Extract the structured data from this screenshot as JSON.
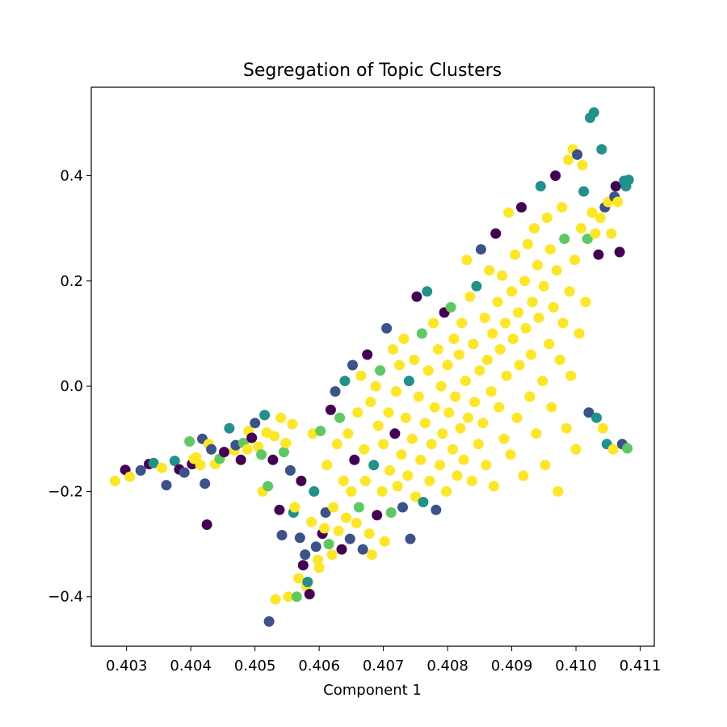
{
  "chart_data": {
    "type": "scatter",
    "title": "Segregation of Topic Clusters",
    "xlabel": "Component 1",
    "ylabel": "",
    "xlim": [
      0.40245,
      0.41122
    ],
    "ylim": [
      -0.494,
      0.568
    ],
    "grid": false,
    "legend": "none",
    "x_ticks": [
      {
        "value": 0.403,
        "label": "0.403"
      },
      {
        "value": 0.404,
        "label": "0.404"
      },
      {
        "value": 0.405,
        "label": "0.405"
      },
      {
        "value": 0.406,
        "label": "0.406"
      },
      {
        "value": 0.407,
        "label": "0.407"
      },
      {
        "value": 0.408,
        "label": "0.408"
      },
      {
        "value": 0.409,
        "label": "0.409"
      },
      {
        "value": 0.41,
        "label": "0.410"
      },
      {
        "value": 0.411,
        "label": "0.411"
      }
    ],
    "y_ticks": [
      {
        "value": -0.4,
        "label": "−0.4"
      },
      {
        "value": -0.2,
        "label": "−0.2"
      },
      {
        "value": 0.0,
        "label": "0.0"
      },
      {
        "value": 0.2,
        "label": "0.2"
      },
      {
        "value": 0.4,
        "label": "0.4"
      }
    ],
    "cluster_colors": [
      "#440154",
      "#3b528b",
      "#21918c",
      "#5ec962",
      "#fde725"
    ],
    "points": [
      [
        0.40282,
        -0.18,
        4
      ],
      [
        0.40298,
        -0.159,
        0
      ],
      [
        0.40305,
        -0.172,
        4
      ],
      [
        0.40322,
        -0.16,
        1
      ],
      [
        0.40335,
        -0.148,
        0
      ],
      [
        0.40342,
        -0.146,
        2
      ],
      [
        0.40355,
        -0.155,
        4
      ],
      [
        0.40362,
        -0.188,
        1
      ],
      [
        0.40375,
        -0.142,
        2
      ],
      [
        0.40382,
        -0.158,
        0
      ],
      [
        0.4039,
        -0.164,
        1
      ],
      [
        0.40398,
        -0.105,
        3
      ],
      [
        0.40402,
        -0.148,
        0
      ],
      [
        0.40405,
        -0.138,
        4
      ],
      [
        0.40408,
        -0.135,
        4
      ],
      [
        0.40415,
        -0.15,
        4
      ],
      [
        0.40418,
        -0.1,
        1
      ],
      [
        0.40422,
        -0.185,
        1
      ],
      [
        0.40425,
        -0.263,
        0
      ],
      [
        0.40428,
        -0.11,
        4
      ],
      [
        0.40432,
        -0.12,
        1
      ],
      [
        0.40438,
        -0.148,
        4
      ],
      [
        0.40445,
        -0.138,
        3
      ],
      [
        0.40452,
        -0.125,
        0
      ],
      [
        0.4046,
        -0.08,
        2
      ],
      [
        0.40468,
        -0.122,
        4
      ],
      [
        0.4047,
        -0.112,
        1
      ],
      [
        0.40478,
        -0.14,
        0
      ],
      [
        0.40482,
        -0.108,
        3
      ],
      [
        0.40488,
        -0.12,
        4
      ],
      [
        0.4049,
        -0.085,
        4
      ],
      [
        0.40495,
        -0.098,
        0
      ],
      [
        0.405,
        -0.07,
        1
      ],
      [
        0.40505,
        -0.115,
        4
      ],
      [
        0.4051,
        -0.13,
        3
      ],
      [
        0.40512,
        -0.2,
        4
      ],
      [
        0.40515,
        -0.055,
        2
      ],
      [
        0.40518,
        -0.088,
        4
      ],
      [
        0.4052,
        -0.19,
        3
      ],
      [
        0.40522,
        -0.447,
        1
      ],
      [
        0.40528,
        -0.14,
        0
      ],
      [
        0.4053,
        -0.095,
        4
      ],
      [
        0.40532,
        -0.405,
        4
      ],
      [
        0.40538,
        -0.235,
        0
      ],
      [
        0.4054,
        -0.06,
        4
      ],
      [
        0.40542,
        -0.283,
        1
      ],
      [
        0.40545,
        -0.125,
        3
      ],
      [
        0.40548,
        -0.108,
        4
      ],
      [
        0.40552,
        -0.4,
        4
      ],
      [
        0.40555,
        -0.16,
        1
      ],
      [
        0.40558,
        -0.072,
        4
      ],
      [
        0.4056,
        -0.24,
        2
      ],
      [
        0.40562,
        -0.23,
        4
      ],
      [
        0.40565,
        -0.4,
        3
      ],
      [
        0.40568,
        -0.365,
        4
      ],
      [
        0.4057,
        -0.288,
        1
      ],
      [
        0.40572,
        -0.18,
        0
      ],
      [
        0.40575,
        -0.34,
        0
      ],
      [
        0.40578,
        -0.32,
        1
      ],
      [
        0.4058,
        -0.38,
        4
      ],
      [
        0.40582,
        -0.372,
        2
      ],
      [
        0.40585,
        -0.395,
        0
      ],
      [
        0.40588,
        -0.258,
        4
      ],
      [
        0.4059,
        -0.09,
        4
      ],
      [
        0.40592,
        -0.2,
        2
      ],
      [
        0.40595,
        -0.305,
        1
      ],
      [
        0.40598,
        -0.33,
        4
      ],
      [
        0.406,
        -0.345,
        4
      ],
      [
        0.40602,
        -0.085,
        3
      ],
      [
        0.40605,
        -0.28,
        0
      ],
      [
        0.40608,
        -0.27,
        4
      ],
      [
        0.4061,
        -0.24,
        1
      ],
      [
        0.40612,
        -0.15,
        4
      ],
      [
        0.40615,
        -0.3,
        3
      ],
      [
        0.40618,
        -0.045,
        0
      ],
      [
        0.4062,
        -0.32,
        4
      ],
      [
        0.40622,
        -0.23,
        4
      ],
      [
        0.40625,
        -0.01,
        1
      ],
      [
        0.40628,
        -0.11,
        4
      ],
      [
        0.4063,
        -0.275,
        4
      ],
      [
        0.40632,
        -0.06,
        3
      ],
      [
        0.40635,
        -0.31,
        0
      ],
      [
        0.40638,
        -0.18,
        4
      ],
      [
        0.4064,
        0.01,
        2
      ],
      [
        0.40642,
        -0.25,
        4
      ],
      [
        0.40645,
        -0.09,
        4
      ],
      [
        0.40648,
        -0.29,
        1
      ],
      [
        0.4065,
        -0.2,
        4
      ],
      [
        0.40652,
        0.04,
        1
      ],
      [
        0.40655,
        -0.14,
        0
      ],
      [
        0.40658,
        -0.26,
        4
      ],
      [
        0.4066,
        -0.05,
        4
      ],
      [
        0.40662,
        -0.23,
        3
      ],
      [
        0.40665,
        0.02,
        4
      ],
      [
        0.40668,
        -0.31,
        1
      ],
      [
        0.4067,
        -0.12,
        4
      ],
      [
        0.40672,
        -0.18,
        4
      ],
      [
        0.40675,
        0.06,
        0
      ],
      [
        0.40678,
        -0.28,
        4
      ],
      [
        0.4068,
        -0.03,
        4
      ],
      [
        0.40682,
        -0.32,
        4
      ],
      [
        0.40685,
        -0.15,
        2
      ],
      [
        0.40688,
        0.0,
        4
      ],
      [
        0.4069,
        -0.245,
        0
      ],
      [
        0.40692,
        -0.075,
        4
      ],
      [
        0.40695,
        0.03,
        3
      ],
      [
        0.40698,
        -0.2,
        4
      ],
      [
        0.407,
        -0.11,
        4
      ],
      [
        0.40702,
        -0.295,
        4
      ],
      [
        0.40705,
        0.11,
        1
      ],
      [
        0.40708,
        -0.05,
        4
      ],
      [
        0.4071,
        -0.16,
        4
      ],
      [
        0.40712,
        -0.24,
        3
      ],
      [
        0.40715,
        0.07,
        4
      ],
      [
        0.40718,
        -0.09,
        0
      ],
      [
        0.4072,
        -0.01,
        4
      ],
      [
        0.40722,
        -0.19,
        4
      ],
      [
        0.40725,
        0.04,
        4
      ],
      [
        0.40728,
        -0.13,
        4
      ],
      [
        0.4073,
        -0.23,
        1
      ],
      [
        0.40732,
        0.09,
        4
      ],
      [
        0.40735,
        -0.06,
        4
      ],
      [
        0.40738,
        -0.17,
        4
      ],
      [
        0.4074,
        0.01,
        2
      ],
      [
        0.40742,
        -0.29,
        1
      ],
      [
        0.40745,
        -0.1,
        4
      ],
      [
        0.40748,
        0.05,
        4
      ],
      [
        0.4075,
        -0.21,
        4
      ],
      [
        0.40752,
        0.17,
        0
      ],
      [
        0.40755,
        -0.02,
        4
      ],
      [
        0.40758,
        -0.14,
        4
      ],
      [
        0.4076,
        0.1,
        3
      ],
      [
        0.40762,
        -0.22,
        2
      ],
      [
        0.40765,
        -0.07,
        4
      ],
      [
        0.40768,
        0.18,
        2
      ],
      [
        0.4077,
        0.03,
        4
      ],
      [
        0.40772,
        -0.18,
        4
      ],
      [
        0.40775,
        -0.11,
        4
      ],
      [
        0.40778,
        0.12,
        4
      ],
      [
        0.4078,
        -0.04,
        4
      ],
      [
        0.40782,
        -0.235,
        1
      ],
      [
        0.40785,
        0.07,
        4
      ],
      [
        0.40788,
        -0.15,
        4
      ],
      [
        0.4079,
        0.0,
        4
      ],
      [
        0.40792,
        -0.09,
        4
      ],
      [
        0.40795,
        0.14,
        0
      ],
      [
        0.40798,
        -0.2,
        4
      ],
      [
        0.408,
        0.04,
        4
      ],
      [
        0.40802,
        -0.05,
        4
      ],
      [
        0.40805,
        0.15,
        3
      ],
      [
        0.40808,
        -0.12,
        4
      ],
      [
        0.4081,
        0.09,
        4
      ],
      [
        0.40812,
        -0.02,
        4
      ],
      [
        0.40815,
        -0.17,
        4
      ],
      [
        0.40818,
        0.06,
        4
      ],
      [
        0.4082,
        -0.08,
        4
      ],
      [
        0.40822,
        0.12,
        4
      ],
      [
        0.40825,
        -0.14,
        4
      ],
      [
        0.40828,
        0.01,
        4
      ],
      [
        0.4083,
        0.24,
        4
      ],
      [
        0.40832,
        -0.06,
        4
      ],
      [
        0.40835,
        0.17,
        4
      ],
      [
        0.40838,
        -0.18,
        4
      ],
      [
        0.4084,
        0.08,
        4
      ],
      [
        0.40842,
        -0.03,
        4
      ],
      [
        0.40845,
        0.19,
        2
      ],
      [
        0.40848,
        -0.11,
        4
      ],
      [
        0.4085,
        0.03,
        4
      ],
      [
        0.40852,
        0.26,
        1
      ],
      [
        0.40855,
        -0.07,
        4
      ],
      [
        0.40858,
        0.13,
        4
      ],
      [
        0.4086,
        -0.15,
        4
      ],
      [
        0.40862,
        0.05,
        4
      ],
      [
        0.40865,
        0.22,
        4
      ],
      [
        0.40868,
        -0.01,
        4
      ],
      [
        0.4087,
        0.1,
        4
      ],
      [
        0.40872,
        -0.19,
        4
      ],
      [
        0.40875,
        0.29,
        0
      ],
      [
        0.40878,
        0.16,
        4
      ],
      [
        0.4088,
        -0.04,
        4
      ],
      [
        0.40882,
        0.07,
        4
      ],
      [
        0.40885,
        0.21,
        4
      ],
      [
        0.40888,
        -0.1,
        4
      ],
      [
        0.4089,
        0.12,
        4
      ],
      [
        0.40892,
        0.02,
        4
      ],
      [
        0.40895,
        0.33,
        4
      ],
      [
        0.40898,
        -0.13,
        4
      ],
      [
        0.409,
        0.18,
        4
      ],
      [
        0.40902,
        0.09,
        4
      ],
      [
        0.40905,
        0.25,
        4
      ],
      [
        0.40908,
        -0.06,
        4
      ],
      [
        0.4091,
        0.14,
        4
      ],
      [
        0.40912,
        0.04,
        4
      ],
      [
        0.40915,
        0.34,
        0
      ],
      [
        0.40918,
        -0.17,
        4
      ],
      [
        0.4092,
        0.2,
        4
      ],
      [
        0.40922,
        0.11,
        4
      ],
      [
        0.40925,
        0.27,
        4
      ],
      [
        0.40928,
        -0.02,
        4
      ],
      [
        0.4093,
        0.06,
        4
      ],
      [
        0.40932,
        0.16,
        4
      ],
      [
        0.40935,
        0.3,
        4
      ],
      [
        0.40938,
        -0.09,
        4
      ],
      [
        0.4094,
        0.23,
        4
      ],
      [
        0.40942,
        0.13,
        4
      ],
      [
        0.40945,
        0.38,
        2
      ],
      [
        0.40948,
        0.01,
        4
      ],
      [
        0.4095,
        0.19,
        4
      ],
      [
        0.40952,
        -0.15,
        4
      ],
      [
        0.40955,
        0.32,
        4
      ],
      [
        0.40958,
        0.08,
        4
      ],
      [
        0.4096,
        0.26,
        4
      ],
      [
        0.40962,
        -0.04,
        4
      ],
      [
        0.40965,
        0.15,
        4
      ],
      [
        0.40968,
        0.4,
        0
      ],
      [
        0.4097,
        0.22,
        4
      ],
      [
        0.40972,
        -0.2,
        4
      ],
      [
        0.40975,
        0.05,
        4
      ],
      [
        0.40978,
        0.34,
        4
      ],
      [
        0.4098,
        0.12,
        4
      ],
      [
        0.40982,
        0.28,
        3
      ],
      [
        0.40985,
        -0.08,
        4
      ],
      [
        0.40988,
        0.43,
        4
      ],
      [
        0.4099,
        0.18,
        4
      ],
      [
        0.40992,
        0.02,
        4
      ],
      [
        0.40995,
        0.45,
        4
      ],
      [
        0.40998,
        0.24,
        4
      ],
      [
        0.41,
        -0.12,
        4
      ],
      [
        0.41002,
        0.44,
        1
      ],
      [
        0.41005,
        0.1,
        4
      ],
      [
        0.41008,
        0.3,
        4
      ],
      [
        0.4101,
        0.42,
        4
      ],
      [
        0.41012,
        0.37,
        2
      ],
      [
        0.41015,
        0.16,
        4
      ],
      [
        0.41018,
        0.28,
        3
      ],
      [
        0.4102,
        -0.05,
        1
      ],
      [
        0.41022,
        0.51,
        2
      ],
      [
        0.41025,
        0.33,
        4
      ],
      [
        0.41028,
        0.52,
        2
      ],
      [
        0.4103,
        0.29,
        4
      ],
      [
        0.41032,
        -0.06,
        2
      ],
      [
        0.41035,
        0.25,
        0
      ],
      [
        0.41038,
        0.32,
        4
      ],
      [
        0.4104,
        0.45,
        2
      ],
      [
        0.41042,
        -0.08,
        4
      ],
      [
        0.41045,
        0.34,
        1
      ],
      [
        0.41048,
        -0.11,
        2
      ],
      [
        0.4105,
        0.35,
        4
      ],
      [
        0.41055,
        0.29,
        4
      ],
      [
        0.41058,
        -0.12,
        4
      ],
      [
        0.4106,
        0.36,
        1
      ],
      [
        0.41062,
        0.38,
        0
      ],
      [
        0.41065,
        0.35,
        4
      ],
      [
        0.41068,
        0.255,
        0
      ],
      [
        0.41072,
        -0.11,
        1
      ],
      [
        0.41075,
        0.39,
        2
      ],
      [
        0.41078,
        0.38,
        2
      ],
      [
        0.4108,
        -0.118,
        3
      ],
      [
        0.41082,
        0.392,
        2
      ]
    ]
  }
}
